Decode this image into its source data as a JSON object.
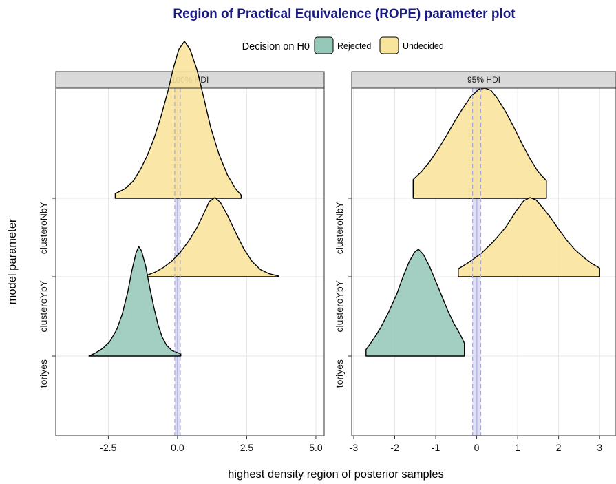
{
  "chart_data": {
    "type": "ridgeline",
    "title": "Region of Practical Equivalence (ROPE) parameter plot",
    "xlabel": "highest density region of posterior samples",
    "ylabel": "model parameter",
    "categories": [
      "toriyes",
      "clusteroYbY",
      "clusteroNbY"
    ],
    "legend": {
      "title": "Decision on H0",
      "position": "top",
      "entries": [
        {
          "label": "Rejected",
          "color": "#96c8b9"
        },
        {
          "label": "Undecided",
          "color": "#f9e49c"
        }
      ]
    },
    "rope": {
      "low": -0.1,
      "high": 0.1,
      "band_color": "#c8c8ee",
      "center_color": "#b8b8e0"
    },
    "grid": true,
    "panels": [
      {
        "strip": "100% HDI",
        "xlim": [
          -4.4,
          5.3
        ],
        "xticks": [
          -2.5,
          0.0,
          2.5,
          5.0
        ],
        "xtick_labels": [
          "-2.5",
          "0.0",
          "2.5",
          "5.0"
        ],
        "series": [
          {
            "parameter": "clusteroNbY",
            "decision": "Undecided",
            "x": [
              -2.25,
              -1.9,
              -1.6,
              -1.35,
              -1.1,
              -0.85,
              -0.6,
              -0.35,
              -0.15,
              0.05,
              0.25,
              0.45,
              0.7,
              0.95,
              1.2,
              1.5,
              1.8,
              2.1,
              2.3
            ],
            "density": [
              0.03,
              0.06,
              0.11,
              0.18,
              0.27,
              0.38,
              0.52,
              0.68,
              0.83,
              0.95,
              1.0,
              0.95,
              0.82,
              0.64,
              0.45,
              0.28,
              0.15,
              0.06,
              0.02
            ]
          },
          {
            "parameter": "clusteroYbY",
            "decision": "Undecided",
            "x": [
              -1.1,
              -0.8,
              -0.5,
              -0.2,
              0.1,
              0.4,
              0.7,
              0.95,
              1.15,
              1.35,
              1.55,
              1.8,
              2.1,
              2.4,
              2.7,
              3.0,
              3.3,
              3.65
            ],
            "density": [
              0.02,
              0.06,
              0.12,
              0.2,
              0.31,
              0.45,
              0.62,
              0.8,
              0.95,
              1.0,
              0.94,
              0.78,
              0.56,
              0.35,
              0.19,
              0.09,
              0.04,
              0.01
            ]
          },
          {
            "parameter": "toriyes",
            "decision": "Rejected",
            "x": [
              -3.2,
              -2.95,
              -2.7,
              -2.45,
              -2.2,
              -2.0,
              -1.8,
              -1.65,
              -1.5,
              -1.4,
              -1.3,
              -1.15,
              -1.0,
              -0.85,
              -0.7,
              -0.55,
              -0.4,
              -0.2,
              0.0,
              0.12
            ],
            "density": [
              0.0,
              0.03,
              0.07,
              0.13,
              0.24,
              0.38,
              0.58,
              0.78,
              0.94,
              1.0,
              0.96,
              0.82,
              0.62,
              0.44,
              0.28,
              0.17,
              0.1,
              0.05,
              0.03,
              0.02
            ]
          }
        ]
      },
      {
        "strip": "95% HDI",
        "xlim": [
          -3.05,
          3.4
        ],
        "xticks": [
          -3,
          -2,
          -1,
          0,
          1,
          2,
          3
        ],
        "xtick_labels": [
          "-3",
          "-2",
          "-1",
          "0",
          "1",
          "2",
          "3"
        ],
        "series": [
          {
            "parameter": "clusteroNbY",
            "decision": "Undecided",
            "x": [
              -1.55,
              -1.35,
              -1.15,
              -0.95,
              -0.75,
              -0.55,
              -0.35,
              -0.15,
              0.05,
              0.2,
              0.35,
              0.5,
              0.7,
              0.9,
              1.1,
              1.3,
              1.5,
              1.7
            ],
            "density": [
              0.17,
              0.24,
              0.33,
              0.44,
              0.56,
              0.69,
              0.81,
              0.92,
              0.99,
              1.0,
              0.98,
              0.91,
              0.79,
              0.65,
              0.5,
              0.36,
              0.24,
              0.16
            ]
          },
          {
            "parameter": "clusteroYbY",
            "decision": "Undecided",
            "x": [
              -0.45,
              -0.2,
              0.1,
              0.4,
              0.7,
              0.95,
              1.15,
              1.3,
              1.45,
              1.6,
              1.8,
              2.0,
              2.2,
              2.4,
              2.6,
              2.8,
              3.0
            ],
            "density": [
              0.1,
              0.18,
              0.29,
              0.44,
              0.62,
              0.82,
              0.96,
              1.0,
              0.97,
              0.88,
              0.75,
              0.6,
              0.46,
              0.34,
              0.25,
              0.17,
              0.11
            ]
          },
          {
            "parameter": "toriyes",
            "decision": "Rejected",
            "x": [
              -2.7,
              -2.55,
              -2.35,
              -2.15,
              -1.95,
              -1.8,
              -1.65,
              -1.52,
              -1.42,
              -1.3,
              -1.15,
              -1.0,
              -0.85,
              -0.7,
              -0.55,
              -0.4,
              -0.3
            ],
            "density": [
              0.06,
              0.14,
              0.26,
              0.41,
              0.58,
              0.74,
              0.88,
              0.97,
              1.0,
              0.95,
              0.84,
              0.7,
              0.56,
              0.42,
              0.3,
              0.2,
              0.12
            ]
          }
        ]
      }
    ]
  }
}
